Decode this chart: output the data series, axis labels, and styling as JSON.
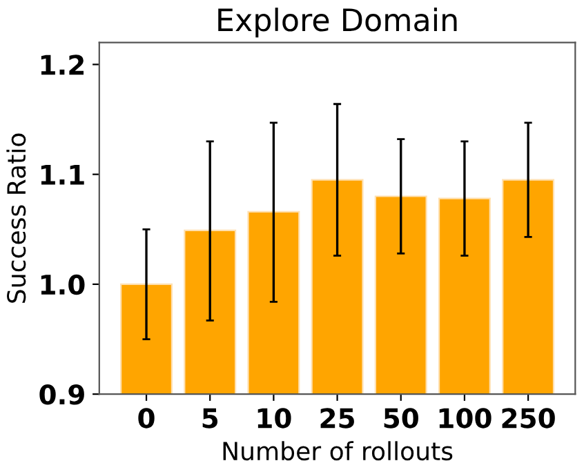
{
  "chart_data": {
    "type": "bar",
    "title": "Explore Domain",
    "xlabel": "Number of rollouts",
    "ylabel": "Success Ratio",
    "categories": [
      "0",
      "5",
      "10",
      "25",
      "50",
      "100",
      "250"
    ],
    "values": [
      1.0,
      1.049,
      1.066,
      1.095,
      1.08,
      1.078,
      1.095
    ],
    "errors": [
      [
        0.95,
        1.05
      ],
      [
        0.967,
        1.13
      ],
      [
        0.984,
        1.147
      ],
      [
        1.026,
        1.164
      ],
      [
        1.028,
        1.132
      ],
      [
        1.026,
        1.13
      ],
      [
        1.043,
        1.147
      ]
    ],
    "color": "#ffa500",
    "ylim": [
      0.9,
      1.22
    ],
    "yticks": [
      0.9,
      {
        "value": 1.0,
        "label": "1.0"
      },
      1.1,
      1.2
    ],
    "grid": false,
    "legend": false
  }
}
